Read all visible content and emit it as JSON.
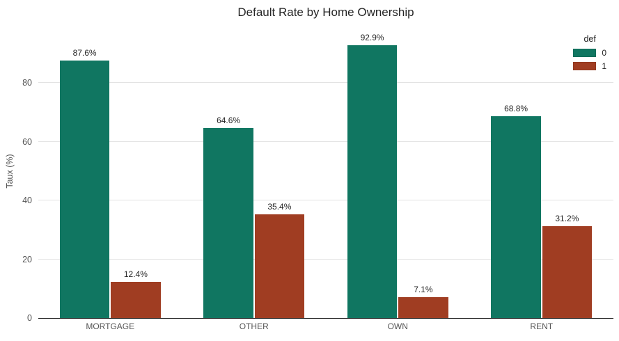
{
  "chart_data": {
    "type": "bar",
    "title": "Default Rate by Home Ownership",
    "xlabel": "",
    "ylabel": "Taux (%)",
    "categories": [
      "MORTGAGE",
      "OTHER",
      "OWN",
      "RENT"
    ],
    "series": [
      {
        "name": "0",
        "color": "#107661",
        "values": [
          87.6,
          64.6,
          92.9,
          68.8
        ],
        "labels": [
          "87.6%",
          "64.6%",
          "92.9%",
          "68.8%"
        ]
      },
      {
        "name": "1",
        "color": "#a03d22",
        "values": [
          12.4,
          35.4,
          7.1,
          31.2
        ],
        "labels": [
          "12.4%",
          "35.4%",
          "7.1%",
          "31.2%"
        ]
      }
    ],
    "yticks": [
      0,
      20,
      40,
      60,
      80
    ],
    "ylim": [
      0,
      100
    ],
    "grid": "horizontal",
    "grid_color": "#e3e3e3",
    "legend": {
      "title": "def",
      "position": "upper right"
    }
  }
}
